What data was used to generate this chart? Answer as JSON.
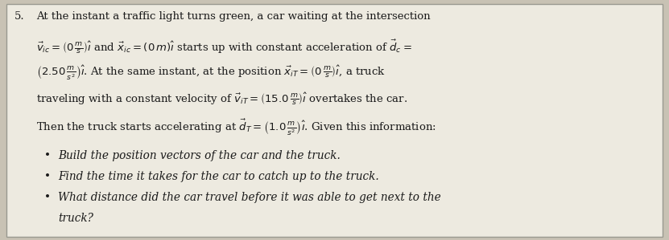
{
  "bg_color": "#c8c2b4",
  "box_bg": "#edeae0",
  "box_border": "#999990",
  "font_size_main": 9.5,
  "font_size_bullet": 9.8,
  "text_color": "#1a1a1a",
  "lines": [
    "5.  At the instant a traffic light turns green, a car waiting at the intersection",
    "$\\vec{v}_{ic} = \\left(0\\,\\frac{m}{s}\\right)\\hat{\\imath}$ and $\\vec{x}_{ic} = (0\\,m)\\hat{\\imath}$ starts up with constant acceleration of $\\vec{d}_c =$",
    "$\\left(2.50\\,\\frac{m}{s^2}\\right)\\hat{\\imath}$. At the same instant, at the position $\\vec{x}_{iT} = \\left(0\\,\\frac{m}{s}\\right)\\hat{\\imath}$, a truck",
    "traveling with a constant velocity of $\\vec{v}_{iT} = \\left(15.0\\,\\frac{m}{s}\\right)\\hat{\\imath}$ overtakes the car.",
    "Then the truck starts accelerating at $\\vec{d}_T = \\left(1.0\\,\\frac{m}{s^2}\\right)\\hat{\\imath}$. Given this information:"
  ],
  "bullets": [
    "Build the position vectors of the car and the truck.",
    "Find the time it takes for the car to catch up to the truck.",
    "What distance did the car travel before it was able to get next to the",
    "truck?"
  ]
}
